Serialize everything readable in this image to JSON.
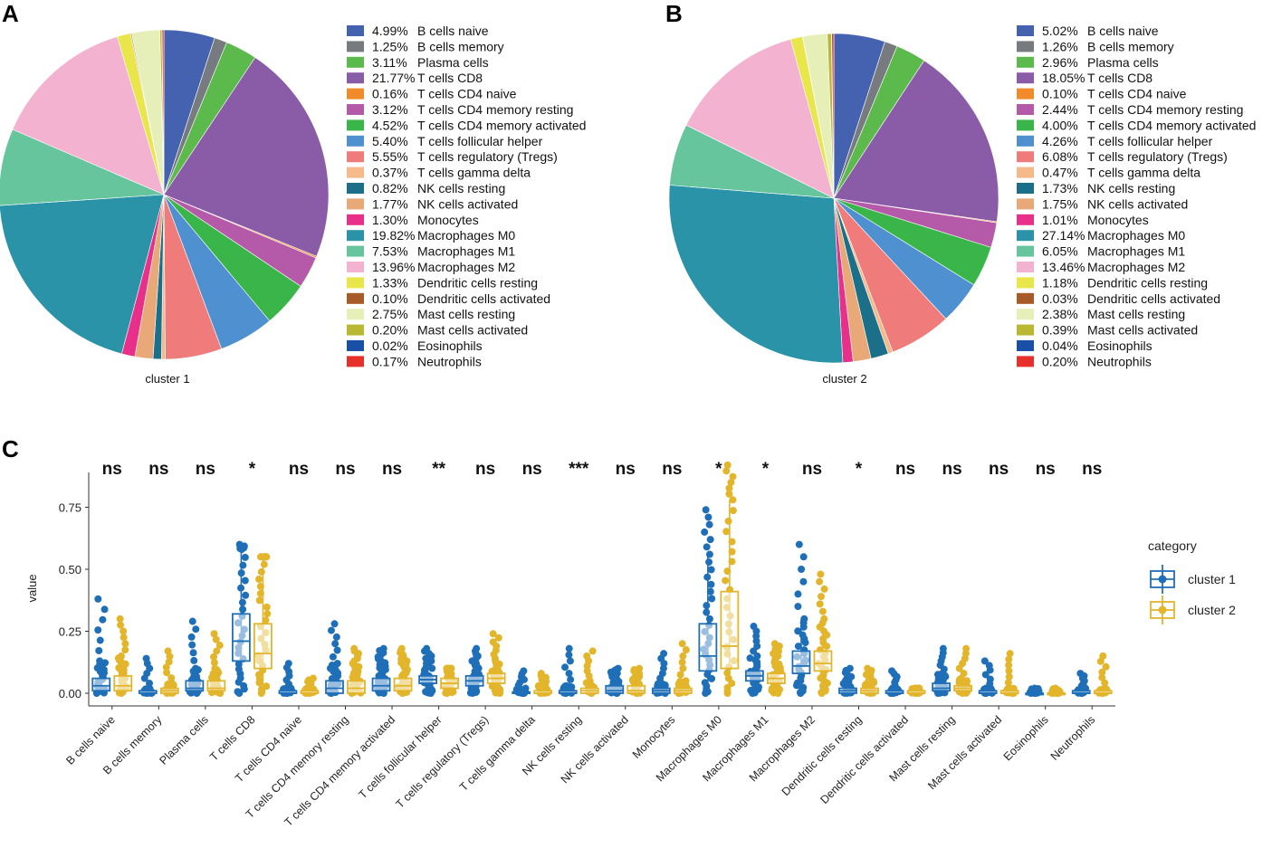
{
  "panels": {
    "a": "A",
    "b": "B",
    "c": "C"
  },
  "colors": {
    "cluster1": "#1f6fb8",
    "cluster2": "#e3b52b",
    "categories": [
      "#4462b0",
      "#777b80",
      "#5cb94b",
      "#8a5ca8",
      "#f08a2a",
      "#b45aa8",
      "#3ab54a",
      "#4f90d0",
      "#f07b7b",
      "#f6b98a",
      "#1b6f88",
      "#e8a878",
      "#e8308a",
      "#2a93a8",
      "#66c59c",
      "#f3b3d0",
      "#e8e64a",
      "#a85a28",
      "#e6efb8",
      "#b8b832",
      "#1a4fa8",
      "#e8302a"
    ]
  },
  "chart_data": [
    {
      "type": "pie",
      "title": "cluster 1",
      "categories": [
        "B cells naive",
        "B cells memory",
        "Plasma cells",
        "T cells CD8",
        "T cells CD4 naive",
        "T cells CD4 memory resting",
        "T cells CD4 memory activated",
        "T cells follicular helper",
        "T cells regulatory (Tregs)",
        "T cells gamma delta",
        "NK cells resting",
        "NK cells activated",
        "Monocytes",
        "Macrophages M0",
        "Macrophages M1",
        "Macrophages M2",
        "Dendritic cells resting",
        "Dendritic cells activated",
        "Mast cells resting",
        "Mast cells activated",
        "Eosinophils",
        "Neutrophils"
      ],
      "values": [
        4.99,
        1.25,
        3.11,
        21.77,
        0.16,
        3.12,
        4.52,
        5.4,
        5.55,
        0.37,
        0.82,
        1.77,
        1.3,
        19.82,
        7.53,
        13.96,
        1.33,
        0.1,
        2.75,
        0.2,
        0.02,
        0.17
      ],
      "labels": [
        "4.99%",
        "1.25%",
        "3.11%",
        "21.77%",
        "0.16%",
        "3.12%",
        "4.52%",
        "5.40%",
        "5.55%",
        "0.37%",
        "0.82%",
        "1.77%",
        "1.30%",
        "19.82%",
        "7.53%",
        "13.96%",
        "1.33%",
        "0.10%",
        "2.75%",
        "0.20%",
        "0.02%",
        "0.17%"
      ]
    },
    {
      "type": "pie",
      "title": "cluster 2",
      "categories": [
        "B cells naive",
        "B cells memory",
        "Plasma cells",
        "T cells CD8",
        "T cells CD4 naive",
        "T cells CD4 memory resting",
        "T cells CD4 memory activated",
        "T cells follicular helper",
        "T cells regulatory (Tregs)",
        "T cells gamma delta",
        "NK cells resting",
        "NK cells activated",
        "Monocytes",
        "Macrophages M0",
        "Macrophages M1",
        "Macrophages M2",
        "Dendritic cells resting",
        "Dendritic cells activated",
        "Mast cells resting",
        "Mast cells activated",
        "Eosinophils",
        "Neutrophils"
      ],
      "values": [
        5.02,
        1.26,
        2.96,
        18.05,
        0.1,
        2.44,
        4.0,
        4.26,
        6.08,
        0.47,
        1.73,
        1.75,
        1.01,
        27.14,
        6.05,
        13.46,
        1.18,
        0.03,
        2.38,
        0.39,
        0.04,
        0.2
      ],
      "labels": [
        "5.02%",
        "1.26%",
        "2.96%",
        "18.05%",
        "0.10%",
        "2.44%",
        "4.00%",
        "4.26%",
        "6.08%",
        "0.47%",
        "1.73%",
        "1.75%",
        "1.01%",
        "27.14%",
        "6.05%",
        "13.46%",
        "1.18%",
        "0.03%",
        "2.38%",
        "0.39%",
        "0.04%",
        "0.20%"
      ]
    },
    {
      "type": "box",
      "ylabel": "value",
      "xlabel": "",
      "ylim": [
        -0.03,
        0.95
      ],
      "yticks": [
        0.0,
        0.25,
        0.5,
        0.75
      ],
      "ytick_labels": [
        "0.00",
        "0.25",
        "0.50",
        "0.75"
      ],
      "legend_title": "category",
      "categories": [
        "B cells naive",
        "B cells memory",
        "Plasma cells",
        "T cells CD8",
        "T cells CD4 naive",
        "T cells CD4 memory resting",
        "T cells CD4 memory activated",
        "T cells follicular helper",
        "T cells regulatory (Tregs)",
        "T cells gamma delta",
        "NK cells resting",
        "NK cells activated",
        "Monocytes",
        "Macrophages M0",
        "Macrophages M1",
        "Macrophages M2",
        "Dendritic cells resting",
        "Dendritic cells activated",
        "Mast cells resting",
        "Mast cells activated",
        "Eosinophils",
        "Neutrophils"
      ],
      "significance": [
        "ns",
        "ns",
        "ns",
        "*",
        "ns",
        "ns",
        "ns",
        "**",
        "ns",
        "ns",
        "***",
        "ns",
        "ns",
        "*",
        "*",
        "ns",
        "*",
        "ns",
        "ns",
        "ns",
        "ns",
        "ns"
      ],
      "series": [
        {
          "name": "cluster 1",
          "q1": [
            0.01,
            0.0,
            0.01,
            0.13,
            0.0,
            0.0,
            0.01,
            0.04,
            0.03,
            0.0,
            0.0,
            0.0,
            0.0,
            0.09,
            0.05,
            0.08,
            0.0,
            0.0,
            0.01,
            0.0,
            0.0,
            0.0
          ],
          "median": [
            0.03,
            0.0,
            0.02,
            0.21,
            0.0,
            0.02,
            0.03,
            0.055,
            0.05,
            0.0,
            0.0,
            0.01,
            0.01,
            0.15,
            0.07,
            0.11,
            0.01,
            0.0,
            0.02,
            0.0,
            0.0,
            0.0
          ],
          "q3": [
            0.06,
            0.01,
            0.05,
            0.32,
            0.01,
            0.05,
            0.06,
            0.07,
            0.07,
            0.005,
            0.01,
            0.03,
            0.02,
            0.28,
            0.09,
            0.17,
            0.02,
            0.01,
            0.04,
            0.01,
            0.0,
            0.01
          ],
          "whisker_low": [
            0.0,
            0.0,
            0.0,
            0.0,
            0.0,
            0.0,
            0.0,
            0.0,
            0.0,
            0.0,
            0.0,
            0.0,
            0.0,
            0.0,
            0.0,
            0.0,
            0.0,
            0.0,
            0.0,
            0.0,
            0.0,
            0.0
          ],
          "whisker_high": [
            0.13,
            0.02,
            0.1,
            0.58,
            0.02,
            0.12,
            0.13,
            0.12,
            0.12,
            0.02,
            0.03,
            0.07,
            0.04,
            0.56,
            0.15,
            0.3,
            0.05,
            0.02,
            0.08,
            0.02,
            0.01,
            0.02
          ],
          "max": [
            0.38,
            0.14,
            0.29,
            0.6,
            0.12,
            0.28,
            0.18,
            0.18,
            0.18,
            0.09,
            0.18,
            0.1,
            0.16,
            0.74,
            0.27,
            0.6,
            0.1,
            0.09,
            0.18,
            0.13,
            0.02,
            0.08
          ]
        },
        {
          "name": "cluster 2",
          "q1": [
            0.01,
            0.0,
            0.01,
            0.1,
            0.0,
            0.0,
            0.01,
            0.02,
            0.04,
            0.0,
            0.0,
            0.0,
            0.0,
            0.1,
            0.04,
            0.09,
            0.0,
            0.0,
            0.01,
            0.0,
            0.0,
            0.0
          ],
          "median": [
            0.03,
            0.01,
            0.02,
            0.16,
            0.0,
            0.02,
            0.03,
            0.04,
            0.06,
            0.0,
            0.01,
            0.01,
            0.01,
            0.19,
            0.06,
            0.12,
            0.01,
            0.0,
            0.02,
            0.0,
            0.0,
            0.0
          ],
          "q3": [
            0.07,
            0.02,
            0.05,
            0.28,
            0.01,
            0.05,
            0.06,
            0.06,
            0.08,
            0.01,
            0.02,
            0.03,
            0.02,
            0.41,
            0.08,
            0.17,
            0.02,
            0.01,
            0.03,
            0.01,
            0.0,
            0.01
          ],
          "whisker_low": [
            0.0,
            0.0,
            0.0,
            0.0,
            0.0,
            0.0,
            0.0,
            0.0,
            0.0,
            0.0,
            0.0,
            0.0,
            0.0,
            0.0,
            0.0,
            0.0,
            0.0,
            0.0,
            0.0,
            0.0,
            0.0,
            0.0
          ],
          "whisker_high": [
            0.15,
            0.04,
            0.1,
            0.55,
            0.02,
            0.12,
            0.13,
            0.1,
            0.14,
            0.03,
            0.05,
            0.07,
            0.05,
            0.78,
            0.14,
            0.3,
            0.05,
            0.02,
            0.06,
            0.02,
            0.01,
            0.02
          ],
          "max": [
            0.3,
            0.17,
            0.24,
            0.55,
            0.06,
            0.18,
            0.18,
            0.1,
            0.24,
            0.08,
            0.17,
            0.1,
            0.2,
            0.92,
            0.2,
            0.48,
            0.1,
            0.02,
            0.18,
            0.16,
            0.02,
            0.15
          ]
        }
      ]
    }
  ]
}
